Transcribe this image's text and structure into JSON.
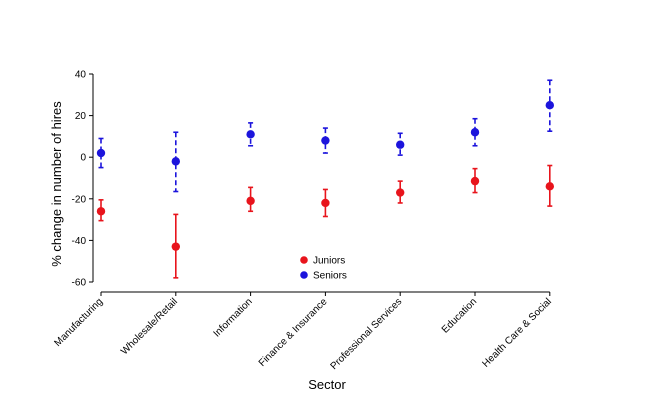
{
  "chart_data": {
    "type": "scatter",
    "title": "",
    "xlabel": "Sector",
    "ylabel": "% change in number of hires",
    "ylim": [
      -60,
      40
    ],
    "yticks": [
      40,
      20,
      0,
      -20,
      -40,
      -60
    ],
    "grid": false,
    "legend_placement": "center-bottom",
    "categories": [
      "Manufacturing",
      "Wholesale/Retail",
      "Information",
      "Finance & Insurance",
      "Professional Services",
      "Education",
      "Health Care & Social"
    ],
    "series": [
      {
        "name": "Juniors",
        "color": "#e8141c",
        "line_style": "solid",
        "values": [
          -26,
          -43,
          -21,
          -22,
          -17,
          -11.5,
          -14
        ],
        "lower": [
          -30.5,
          -58,
          -26,
          -28.5,
          -22,
          -17,
          -23.5
        ],
        "upper": [
          -20.5,
          -27.5,
          -14.5,
          -15.5,
          -11.5,
          -5.5,
          -4
        ]
      },
      {
        "name": "Seniors",
        "color": "#1c14dc",
        "line_style": "dashed",
        "values": [
          2,
          -2,
          11,
          8,
          6,
          12,
          25
        ],
        "lower": [
          -5,
          -16.5,
          5.5,
          2,
          1,
          5.5,
          12.5
        ],
        "upper": [
          9,
          12,
          16.5,
          14,
          11.5,
          18.5,
          37
        ]
      }
    ]
  }
}
